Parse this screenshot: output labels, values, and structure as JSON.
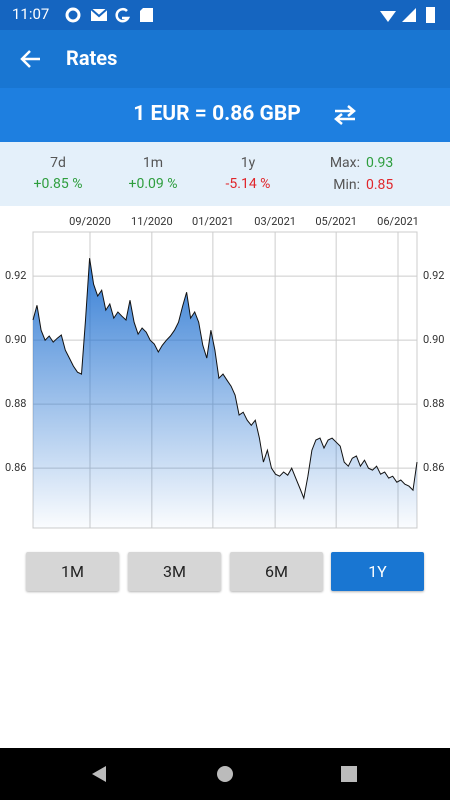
{
  "status_bar": {
    "time": "11:07"
  },
  "app_bar": {
    "title": "Rates"
  },
  "rate_banner": {
    "text": "1 EUR = 0.86 GBP"
  },
  "stats": [
    {
      "label": "7d",
      "value": "+0.85 %",
      "color": "#2e9e3e"
    },
    {
      "label": "1m",
      "value": "+0.09 %",
      "color": "#2e9e3e"
    },
    {
      "label": "1y",
      "value": "-5.14 %",
      "color": "#e0262b"
    }
  ],
  "extremes": [
    {
      "label": "Max:",
      "value": "0.93",
      "color": "#2e9e3e"
    },
    {
      "label": "Min:",
      "value": "0.85",
      "color": "#e0262b"
    }
  ],
  "range_buttons": {
    "labels": [
      "1M",
      "3M",
      "6M",
      "1Y"
    ],
    "active_index": 3
  },
  "chart_data": {
    "type": "area",
    "series": [
      {
        "color": "#1e6fd0",
        "values": [
          0.9063,
          0.9109,
          0.9031,
          0.9,
          0.9013,
          0.8994,
          0.9006,
          0.9016,
          0.8969,
          0.8944,
          0.8919,
          0.89,
          0.8894,
          0.9063,
          0.9256,
          0.9175,
          0.9138,
          0.9156,
          0.9094,
          0.9113,
          0.9069,
          0.9088,
          0.9075,
          0.9063,
          0.9125,
          0.9056,
          0.9019,
          0.9038,
          0.9025,
          0.9,
          0.8988,
          0.8963,
          0.8984,
          0.9,
          0.9013,
          0.9031,
          0.9056,
          0.9106,
          0.915,
          0.9069,
          0.9088,
          0.9056,
          0.8984,
          0.8944,
          0.9031,
          0.8969,
          0.8881,
          0.8894,
          0.8875,
          0.8856,
          0.8828,
          0.8766,
          0.8775,
          0.875,
          0.8734,
          0.875,
          0.8694,
          0.8619,
          0.8656,
          0.86,
          0.8581,
          0.8575,
          0.8588,
          0.8578,
          0.86,
          0.8569,
          0.8538,
          0.8506,
          0.8575,
          0.8656,
          0.8688,
          0.8694,
          0.8663,
          0.8688,
          0.8694,
          0.8681,
          0.8669,
          0.8619,
          0.8606,
          0.8631,
          0.8638,
          0.8606,
          0.8625,
          0.86,
          0.8594,
          0.8606,
          0.8581,
          0.8588,
          0.8569,
          0.8575,
          0.8556,
          0.8563,
          0.855,
          0.8544,
          0.8531,
          0.8619
        ]
      }
    ],
    "xlim": [
      0,
      95
    ],
    "xticks": [
      {
        "value": 14.1,
        "label": "09/2020"
      },
      {
        "value": 29.4,
        "label": "11/2020"
      },
      {
        "value": 44.5,
        "label": "01/2021"
      },
      {
        "value": 59.9,
        "label": "03/2021"
      },
      {
        "value": 75,
        "label": "05/2021"
      },
      {
        "value": 90.3,
        "label": "06/2021"
      }
    ],
    "ylim": [
      0.8413,
      0.9338
    ],
    "yticks": [
      0.86,
      0.88,
      {
        "value": 0.9,
        "label": "0.90"
      },
      0.92
    ],
    "grid": true
  }
}
